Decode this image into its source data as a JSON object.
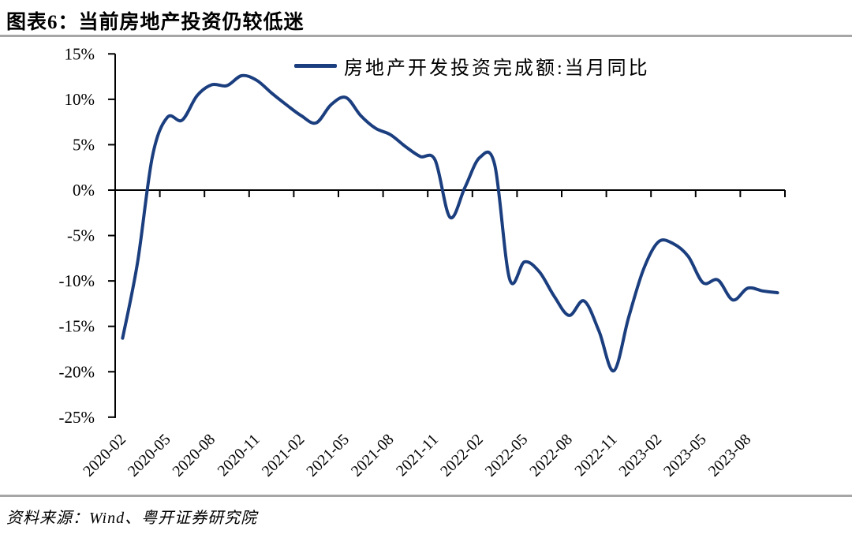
{
  "header": {
    "title": "图表6：当前房地产投资仍较低迷"
  },
  "footer": {
    "source": "资料来源：Wind、粤开证券研究院"
  },
  "colors": {
    "line": "#1B3E7F",
    "axis": "#000000",
    "rule": "#A6A6A6"
  },
  "chart_data": {
    "type": "line",
    "title": "图表6：当前房地产投资仍较低迷",
    "legend": [
      "房地产开发投资完成额:当月同比"
    ],
    "legend_position": "top-center",
    "grid": false,
    "x": [
      "2020-02",
      "2020-03",
      "2020-04",
      "2020-05",
      "2020-06",
      "2020-07",
      "2020-08",
      "2020-09",
      "2020-10",
      "2020-11",
      "2020-12",
      "2021-01",
      "2021-02",
      "2021-03",
      "2021-04",
      "2021-05",
      "2021-06",
      "2021-07",
      "2021-08",
      "2021-09",
      "2021-10",
      "2021-11",
      "2021-12",
      "2022-01",
      "2022-02",
      "2022-03",
      "2022-04",
      "2022-05",
      "2022-06",
      "2022-07",
      "2022-08",
      "2022-09",
      "2022-10",
      "2022-11",
      "2022-12",
      "2023-01",
      "2023-02",
      "2023-03",
      "2023-04",
      "2023-05",
      "2023-06",
      "2023-07",
      "2023-08",
      "2023-09",
      "2023-10"
    ],
    "values": [
      -16.3,
      -8.0,
      3.7,
      8.0,
      7.7,
      10.4,
      11.6,
      11.5,
      12.6,
      12.1,
      10.7,
      9.4,
      8.2,
      7.4,
      9.4,
      10.2,
      8.2,
      6.8,
      6.1,
      4.8,
      3.7,
      3.3,
      -3.0,
      0.3,
      3.6,
      2.8,
      -9.8,
      -7.9,
      -9.0,
      -11.7,
      -13.8,
      -12.2,
      -15.5,
      -19.9,
      -14.0,
      -8.7,
      -5.7,
      -5.9,
      -7.3,
      -10.2,
      -9.9,
      -12.1,
      -10.8,
      -11.1,
      -11.3
    ],
    "ylim": [
      -25,
      15
    ],
    "yticks": [
      15,
      10,
      5,
      0,
      -5,
      -10,
      -15,
      -20,
      -25
    ],
    "ytick_labels": [
      "15%",
      "10%",
      "5%",
      "0%",
      "-5%",
      "-10%",
      "-15%",
      "-20%",
      "-25%"
    ],
    "xtick_labels": [
      "2020-02",
      "2020-05",
      "2020-08",
      "2020-11",
      "2021-02",
      "2021-05",
      "2021-08",
      "2021-11",
      "2022-02",
      "2022-05",
      "2022-08",
      "2022-11",
      "2023-02",
      "2023-05",
      "2023-08"
    ]
  }
}
